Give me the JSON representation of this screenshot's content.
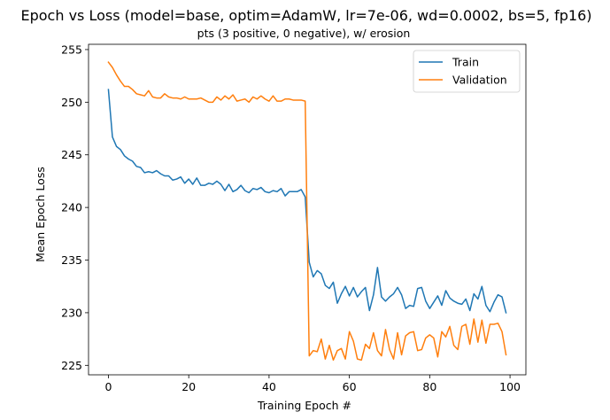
{
  "chart_data": {
    "type": "line",
    "title": "Epoch vs Loss (model=base, optim=AdamW, lr=7e-06, wd=0.0002, bs=5, fp16)",
    "subtitle": "pts (3 positive, 0 negative), w/ erosion",
    "xlabel": "Training Epoch #",
    "ylabel": "Mean Epoch Loss",
    "xlim": [
      -4.95,
      103.95
    ],
    "ylim": [
      224.1,
      255.5
    ],
    "xticks": [
      0,
      20,
      40,
      60,
      80,
      100
    ],
    "yticks": [
      225,
      230,
      235,
      240,
      245,
      250,
      255
    ],
    "grid": false,
    "legend_position": "top-right",
    "series": [
      {
        "name": "Train",
        "color": "#1f77b4",
        "values": [
          251.2,
          246.7,
          245.8,
          245.5,
          244.9,
          244.6,
          244.4,
          243.9,
          243.8,
          243.3,
          243.4,
          243.3,
          243.5,
          243.2,
          243.0,
          243.0,
          242.6,
          242.7,
          242.9,
          242.3,
          242.7,
          242.2,
          242.8,
          242.1,
          242.1,
          242.3,
          242.2,
          242.5,
          242.2,
          241.6,
          242.2,
          241.5,
          241.7,
          242.1,
          241.6,
          241.4,
          241.8,
          241.7,
          241.9,
          241.5,
          241.4,
          241.6,
          241.5,
          241.8,
          241.1,
          241.5,
          241.5,
          241.5,
          241.7,
          241.0,
          234.8,
          233.4,
          234.0,
          233.7,
          232.6,
          232.3,
          232.9,
          230.9,
          231.8,
          232.5,
          231.6,
          232.4,
          231.5,
          232.0,
          232.4,
          230.2,
          231.7,
          234.3,
          231.5,
          231.1,
          231.5,
          231.8,
          232.4,
          231.7,
          230.4,
          230.7,
          230.6,
          232.3,
          232.4,
          231.1,
          230.4,
          231.0,
          231.6,
          230.7,
          232.1,
          231.4,
          231.1,
          230.9,
          230.8,
          231.3,
          230.2,
          231.8,
          231.3,
          232.5,
          230.7,
          230.1,
          231.0,
          231.7,
          231.5,
          230.0
        ]
      },
      {
        "name": "Validation",
        "color": "#ff7f0e",
        "values": [
          253.8,
          253.3,
          252.6,
          252.0,
          251.5,
          251.5,
          251.2,
          250.8,
          250.7,
          250.6,
          251.1,
          250.5,
          250.4,
          250.4,
          250.8,
          250.5,
          250.4,
          250.4,
          250.3,
          250.5,
          250.3,
          250.3,
          250.3,
          250.4,
          250.2,
          250.0,
          250.0,
          250.5,
          250.2,
          250.6,
          250.3,
          250.7,
          250.1,
          250.2,
          250.3,
          250.0,
          250.5,
          250.3,
          250.6,
          250.3,
          250.1,
          250.6,
          250.1,
          250.1,
          250.3,
          250.3,
          250.2,
          250.2,
          250.2,
          250.1,
          225.9,
          226.4,
          226.3,
          227.5,
          225.6,
          226.9,
          225.5,
          226.4,
          226.6,
          225.6,
          228.2,
          227.3,
          225.6,
          225.5,
          227.0,
          226.6,
          228.1,
          226.4,
          225.9,
          228.4,
          226.5,
          225.6,
          228.1,
          226.0,
          227.8,
          228.1,
          228.2,
          226.4,
          226.5,
          227.6,
          227.9,
          227.6,
          225.8,
          228.2,
          227.7,
          228.7,
          226.9,
          226.5,
          228.7,
          228.9,
          227.0,
          229.4,
          227.2,
          229.3,
          227.1,
          228.9,
          228.9,
          229.0,
          228.2,
          226.0
        ]
      }
    ]
  }
}
